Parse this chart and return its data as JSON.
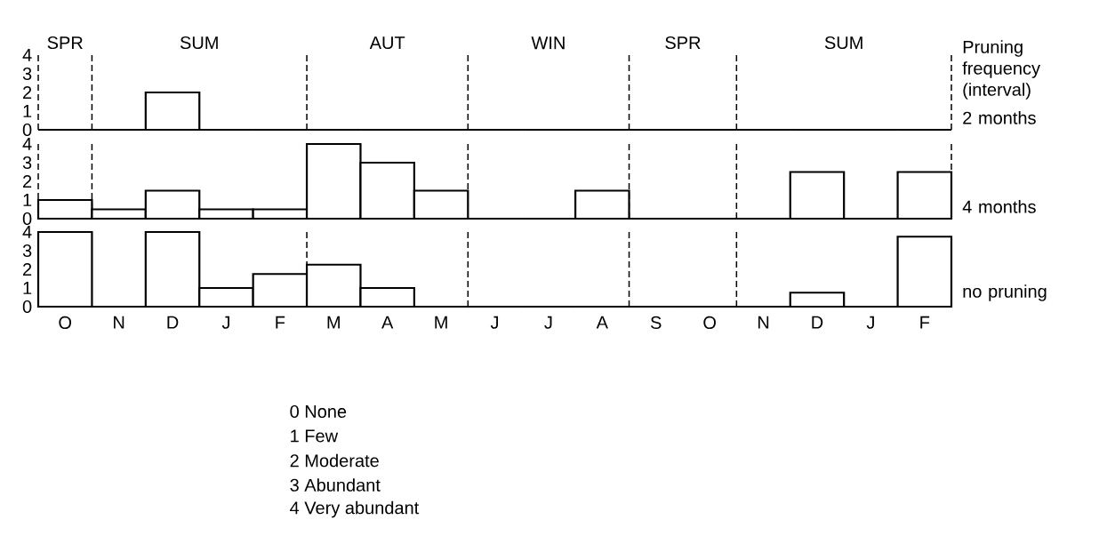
{
  "chart_data": [
    {
      "type": "bar",
      "categories": [
        null,
        null,
        null,
        null,
        null,
        null,
        null,
        null,
        null,
        null,
        null,
        null,
        null,
        null,
        null,
        null,
        null
      ],
      "ylim": [
        0,
        4
      ],
      "yticks": [
        0,
        1,
        2,
        3,
        4
      ],
      "tick_labels": "y",
      "annotations": [
        "SPR",
        "SUM",
        "AUT",
        "WIN",
        "SPR",
        "SUM",
        "Pruning frequency (interval)"
      ],
      "series": [
        {
          "name": "2 months",
          "color": "#000000",
          "values": [
            0,
            0,
            2,
            0,
            0,
            0,
            0,
            0,
            0,
            0,
            0,
            0,
            0,
            0,
            0,
            0,
            0
          ]
        }
      ]
    },
    {
      "type": "bar",
      "categories": [
        null,
        null,
        null,
        null,
        null,
        null,
        null,
        null,
        null,
        null,
        null,
        null,
        null,
        null,
        null,
        null,
        null
      ],
      "ylim": [
        0,
        4
      ],
      "yticks": [
        0,
        1,
        2,
        3,
        4
      ],
      "tick_labels": "y",
      "series": [
        {
          "name": "4 months",
          "color": "#000000",
          "values": [
            1,
            0.5,
            1.5,
            0.5,
            0.5,
            4,
            3,
            1.5,
            0,
            0,
            1.5,
            0,
            0,
            0,
            2.5,
            0,
            2.5
          ]
        }
      ]
    },
    {
      "type": "bar",
      "categories": [
        "O",
        "N",
        "D",
        "J",
        "F",
        "M",
        "A",
        "M",
        "J",
        "J",
        "A",
        "S",
        "O",
        "N",
        "D",
        "J",
        "F"
      ],
      "ylim": [
        0,
        4
      ],
      "yticks": [
        0,
        1,
        2,
        3,
        4
      ],
      "series": [
        {
          "name": "no pruning",
          "color": "#000000",
          "values": [
            4,
            0,
            4,
            1,
            1.75,
            2.25,
            1,
            0,
            0,
            0,
            0,
            0,
            0,
            0,
            0.75,
            0,
            3.75
          ]
        }
      ],
      "annotations": [
        "0 None",
        "1 Few",
        "2 Moderate",
        "3 Abundant",
        "4 Very abundant"
      ]
    }
  ]
}
